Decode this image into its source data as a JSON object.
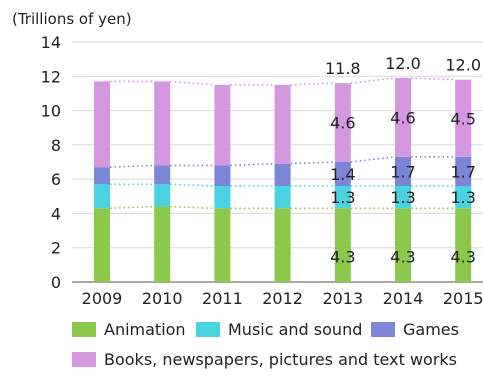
{
  "chart_data": {
    "type": "bar",
    "stacked": true,
    "unit_label": "(Trillions of yen)",
    "categories": [
      "2009",
      "2010",
      "2011",
      "2012",
      "2013",
      "2014",
      "2015"
    ],
    "ylim": [
      0,
      14
    ],
    "yticks": [
      0,
      2,
      4,
      6,
      8,
      10,
      12,
      14
    ],
    "grid": true,
    "series": [
      {
        "name": "Animation",
        "color": "#8cc84b",
        "values": [
          4.3,
          4.4,
          4.3,
          4.3,
          4.3,
          4.3,
          4.3
        ]
      },
      {
        "name": "Music and sound",
        "color": "#49d3df",
        "values": [
          1.4,
          1.3,
          1.3,
          1.3,
          1.3,
          1.3,
          1.3
        ]
      },
      {
        "name": "Games",
        "color": "#7c86d6",
        "values": [
          1.0,
          1.1,
          1.2,
          1.3,
          1.4,
          1.7,
          1.7
        ]
      },
      {
        "name": "Books, newspapers, pictures and text works",
        "color": "#d497e0",
        "values": [
          5.0,
          4.9,
          4.7,
          4.6,
          4.6,
          4.6,
          4.5
        ]
      }
    ],
    "data_labels": {
      "totals": [
        {
          "index": 4,
          "text": "11.8"
        },
        {
          "index": 5,
          "text": "12.0"
        },
        {
          "index": 6,
          "text": "12.0"
        }
      ],
      "segments": [
        {
          "series": 0,
          "index": 4,
          "text": "4.3"
        },
        {
          "series": 0,
          "index": 5,
          "text": "4.3"
        },
        {
          "series": 0,
          "index": 6,
          "text": "4.3"
        },
        {
          "series": 1,
          "index": 4,
          "text": "1.3"
        },
        {
          "series": 1,
          "index": 5,
          "text": "1.3"
        },
        {
          "series": 1,
          "index": 6,
          "text": "1.3"
        },
        {
          "series": 2,
          "index": 4,
          "text": "1.4"
        },
        {
          "series": 2,
          "index": 5,
          "text": "1.7"
        },
        {
          "series": 2,
          "index": 6,
          "text": "1.7"
        },
        {
          "series": 3,
          "index": 4,
          "text": "4.6"
        },
        {
          "series": 3,
          "index": 5,
          "text": "4.6"
        },
        {
          "series": 3,
          "index": 6,
          "text": "4.5"
        }
      ]
    },
    "legend_position": "bottom"
  }
}
